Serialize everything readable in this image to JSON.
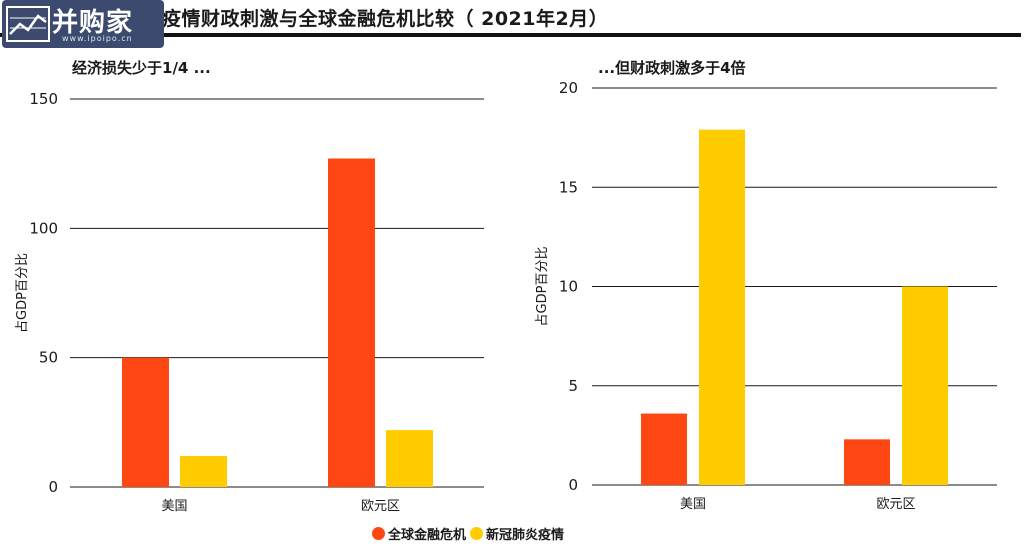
{
  "title": "但新冠疫情期间的疫情财政刺激与全球金融危机比较（ 2021年2月）",
  "watermark": {
    "name": "并购家",
    "url": "www.ipoipo.cn"
  },
  "legend": [
    {
      "name": "全球金融危机",
      "color": "#ff4713"
    },
    {
      "name": "新冠肺炎疫情",
      "color": "#ffcc00"
    }
  ],
  "chart_data": [
    {
      "type": "bar",
      "subtitle": "经济损失少于1/4 ...",
      "ylabel": "占GDP百分比",
      "categories": [
        "美国",
        "欧元区"
      ],
      "ylim": [
        0,
        150
      ],
      "yticks": [
        0,
        50,
        100,
        150
      ],
      "series": [
        {
          "name": "全球金融危机",
          "color": "#ff4713",
          "values": [
            50,
            127
          ]
        },
        {
          "name": "新冠肺炎疫情",
          "color": "#ffcc00",
          "values": [
            12,
            22
          ]
        }
      ]
    },
    {
      "type": "bar",
      "subtitle": "...但财政刺激多于4倍",
      "ylabel": "占GDP百分比",
      "categories": [
        "美国",
        "欧元区"
      ],
      "ylim": [
        0,
        20
      ],
      "yticks": [
        0,
        5,
        10,
        15,
        20
      ],
      "series": [
        {
          "name": "全球金融危机",
          "color": "#ff4713",
          "values": [
            3.6,
            2.3
          ]
        },
        {
          "name": "新冠肺炎疫情",
          "color": "#ffcc00",
          "values": [
            17.9,
            10
          ]
        }
      ]
    }
  ]
}
